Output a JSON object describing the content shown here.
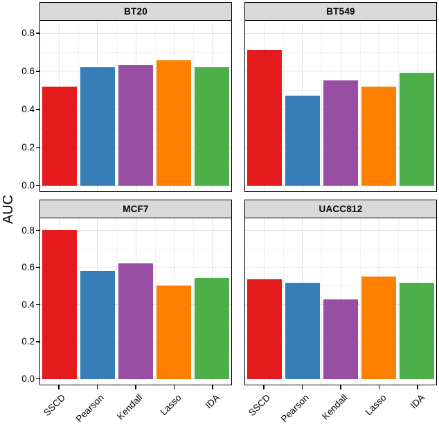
{
  "figure": {
    "y_axis_title": "AUC",
    "colors": {
      "background": "#ffffff",
      "strip_bg": "#d9d9d9",
      "panel_border": "#000000",
      "grid_major": "#e2e2e2",
      "grid_minor": "#f1f1f1",
      "text": "#000000"
    }
  },
  "chart_data": {
    "type": "bar",
    "title": "",
    "xlabel": "",
    "ylabel": "AUC",
    "legend_position": "none",
    "grid": "major and minor horizontal + vertical, light gray on white",
    "categories": [
      "SSCD",
      "Pearson",
      "Kendall",
      "Lasso",
      "IDA"
    ],
    "bar_colors": [
      "#e41a1c",
      "#377eb8",
      "#984ea3",
      "#ff7f00",
      "#4daf4a"
    ],
    "y_ticks": [
      0.0,
      0.2,
      0.4,
      0.6,
      0.8
    ],
    "y_tick_labels": [
      "0.0",
      "0.2",
      "0.4",
      "0.6",
      "0.8"
    ],
    "y_minor_ticks": [
      0.1,
      0.3,
      0.5,
      0.7
    ],
    "ylim": [
      0,
      0.868
    ],
    "facets": [
      {
        "title": "BT20",
        "values": [
          0.52,
          0.625,
          0.635,
          0.66,
          0.625
        ]
      },
      {
        "title": "BT549",
        "values": [
          0.715,
          0.475,
          0.555,
          0.52,
          0.595
        ]
      },
      {
        "title": "MCF7",
        "values": [
          0.805,
          0.585,
          0.625,
          0.505,
          0.545
        ]
      },
      {
        "title": "UACC812",
        "values": [
          0.54,
          0.52,
          0.43,
          0.555,
          0.52
        ]
      }
    ]
  }
}
